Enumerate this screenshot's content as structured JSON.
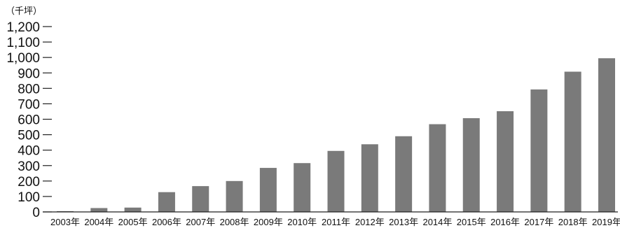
{
  "chart_data": {
    "type": "bar",
    "unit_label": "（千坪）",
    "categories": [
      "2003年",
      "2004年",
      "2005年",
      "2006年",
      "2007年",
      "2008年",
      "2009年",
      "2010年",
      "2011年",
      "2012年",
      "2013年",
      "2014年",
      "2015年",
      "2016年",
      "2017年",
      "2018年",
      "2019年"
    ],
    "values": [
      5,
      25,
      28,
      128,
      167,
      200,
      285,
      316,
      395,
      438,
      490,
      568,
      607,
      652,
      793,
      908,
      995
    ],
    "yticks": [
      0,
      100,
      200,
      300,
      400,
      500,
      600,
      700,
      800,
      900,
      1000,
      1100,
      1200
    ],
    "ytick_labels": [
      "0",
      "100",
      "200",
      "300",
      "400",
      "500",
      "600",
      "700",
      "800",
      "900",
      "1,000",
      "1,100",
      "1,200"
    ],
    "ylim": [
      0,
      1200
    ],
    "grid": false,
    "legend": "none",
    "colors": {
      "bar": "#7a7a7a",
      "axis": "#222222",
      "text": "#111111"
    }
  }
}
